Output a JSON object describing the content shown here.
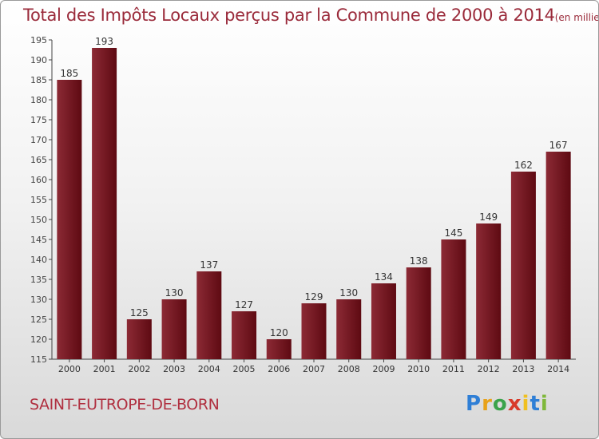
{
  "title": "Total des Impôts Locaux perçus par la Commune de 2000 à 2014",
  "title_unit": "(en milliers d'€)",
  "commune": "SAINT-EUTROPE-DE-BORN",
  "logo": {
    "letters": [
      "P",
      "r",
      "o",
      "x",
      "i",
      "t",
      "i"
    ],
    "colors": [
      "#2f7fd6",
      "#e8a21a",
      "#3aa34a",
      "#d83a2a",
      "#f0c020",
      "#2f7fd6",
      "#7fb83a"
    ]
  },
  "chart_data": {
    "type": "bar",
    "categories": [
      "2000",
      "2001",
      "2002",
      "2003",
      "2004",
      "2005",
      "2006",
      "2007",
      "2008",
      "2009",
      "2010",
      "2011",
      "2012",
      "2013",
      "2014"
    ],
    "values": [
      185,
      193,
      125,
      130,
      137,
      127,
      120,
      129,
      130,
      134,
      138,
      145,
      149,
      162,
      167
    ],
    "ylim": [
      115,
      195
    ],
    "yticks": [
      115,
      120,
      125,
      130,
      135,
      140,
      145,
      150,
      155,
      160,
      165,
      170,
      175,
      180,
      185,
      190,
      195
    ],
    "grid": false,
    "data_labels": true,
    "colors": {
      "bar_light": "#8c2a35",
      "bar_dark": "#5e0a12",
      "axis": "#444444"
    }
  }
}
